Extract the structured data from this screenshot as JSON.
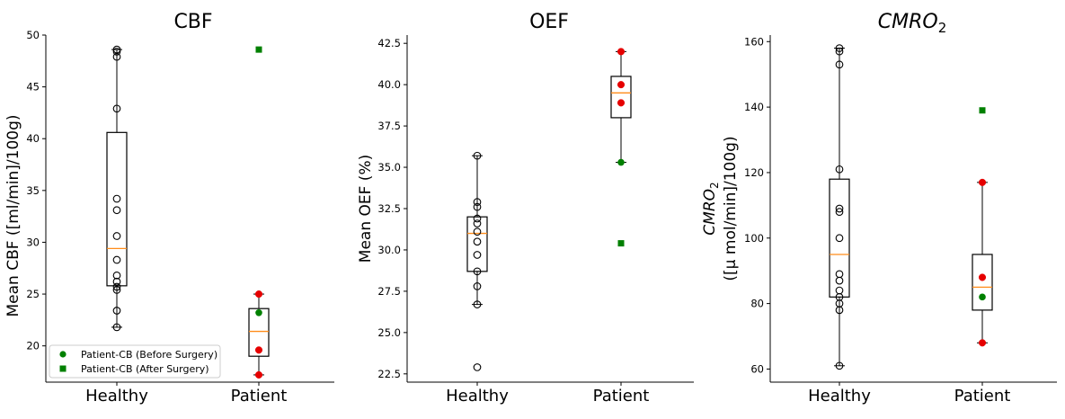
{
  "chart_data": [
    {
      "type": "box",
      "title": "CBF",
      "ylabel": "Mean CBF ([ml/min]/100g)",
      "ylim": [
        16.5,
        50
      ],
      "yticks": [
        20,
        25,
        30,
        35,
        40,
        45,
        50
      ],
      "categories": [
        "Healthy",
        "Patient"
      ],
      "boxes": [
        {
          "category": "Healthy",
          "whisker_low": 21.8,
          "q1": 25.8,
          "median": 29.4,
          "q3": 40.6,
          "whisker_high": 48.6
        },
        {
          "category": "Patient",
          "whisker_low": 17.2,
          "q1": 19.0,
          "median": 21.4,
          "q3": 23.6,
          "whisker_high": 25.0
        }
      ],
      "healthy_points": [
        21.8,
        23.4,
        25.4,
        25.7,
        26.2,
        26.8,
        28.3,
        30.6,
        33.1,
        34.2,
        42.9,
        47.9,
        48.4,
        48.6
      ],
      "patient_points": [
        17.2,
        19.6,
        25.0
      ],
      "patient_cb_before": 23.2,
      "patient_cb_after": 48.6,
      "legend": {
        "before": "Patient-CB (Before Surgery)",
        "after": "Patient-CB (After Surgery)",
        "location": "lower-left"
      }
    },
    {
      "type": "box",
      "title": "OEF",
      "ylabel": "Mean OEF (%)",
      "ylim": [
        22,
        43
      ],
      "yticks": [
        22.5,
        25.0,
        27.5,
        30.0,
        32.5,
        35.0,
        37.5,
        40.0,
        42.5
      ],
      "categories": [
        "Healthy",
        "Patient"
      ],
      "boxes": [
        {
          "category": "Healthy",
          "whisker_low": 26.7,
          "q1": 28.7,
          "median": 31.0,
          "q3": 32.0,
          "whisker_high": 35.7
        },
        {
          "category": "Patient",
          "whisker_low": 35.3,
          "q1": 38.0,
          "median": 39.5,
          "q3": 40.5,
          "whisker_high": 42.0
        }
      ],
      "healthy_points": [
        22.9,
        26.7,
        27.8,
        28.7,
        29.7,
        30.5,
        31.1,
        31.6,
        31.9,
        32.6,
        32.9,
        35.7
      ],
      "patient_points": [
        38.9,
        40.0,
        42.0
      ],
      "patient_cb_before": 35.3,
      "patient_cb_after": 30.4
    },
    {
      "type": "box",
      "title": "CMRO",
      "title_sub": "2",
      "ylabel_line1": "CMRO",
      "ylabel_line1_sub": "2",
      "ylabel_line2": "([μ mol/min]/100g)",
      "ylim": [
        56,
        162
      ],
      "yticks": [
        60,
        80,
        100,
        120,
        140,
        160
      ],
      "categories": [
        "Healthy",
        "Patient"
      ],
      "boxes": [
        {
          "category": "Healthy",
          "whisker_low": 61,
          "q1": 82,
          "median": 95,
          "q3": 118,
          "whisker_high": 158
        },
        {
          "category": "Patient",
          "whisker_low": 68,
          "q1": 78,
          "median": 85,
          "q3": 95,
          "whisker_high": 117
        }
      ],
      "healthy_points": [
        61,
        78,
        80,
        82,
        84,
        87,
        89,
        100,
        108,
        109,
        121,
        153,
        157,
        158
      ],
      "patient_points": [
        68,
        88,
        117
      ],
      "patient_cb_before": 82,
      "patient_cb_after": 139
    }
  ]
}
